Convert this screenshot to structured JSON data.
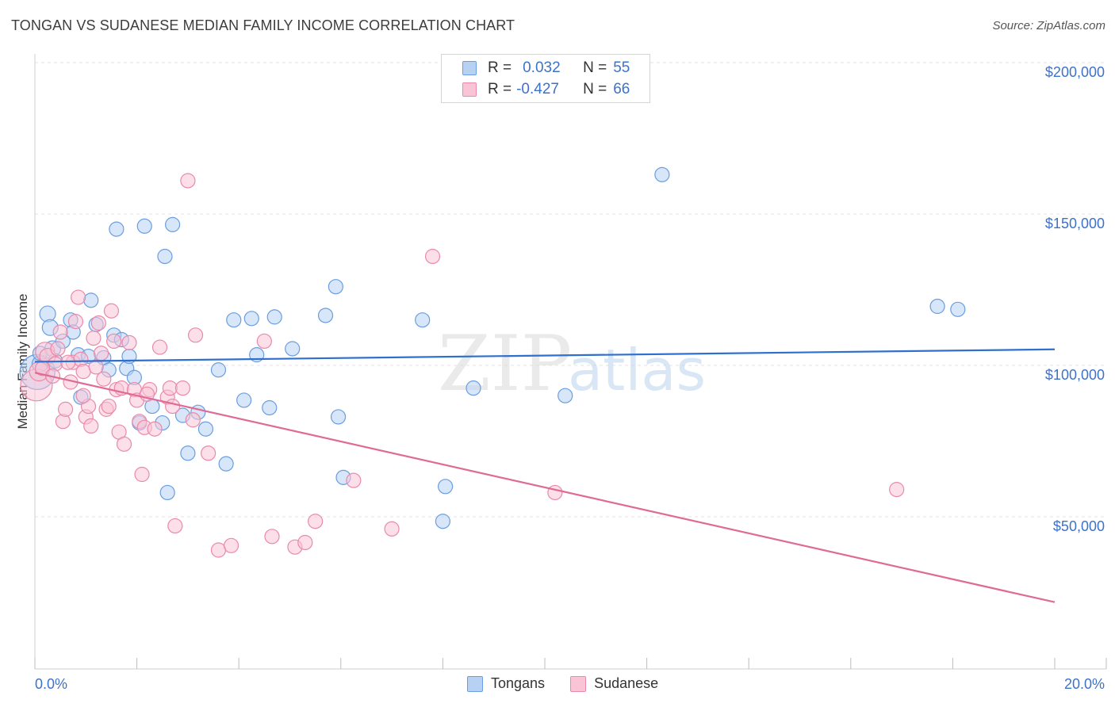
{
  "header": {
    "title": "TONGAN VS SUDANESE MEDIAN FAMILY INCOME CORRELATION CHART",
    "source": "Source: ZipAtlas.com"
  },
  "legend": {
    "r_label": "R =",
    "n_label": "N =",
    "tongans": {
      "r": "0.032",
      "n": "55"
    },
    "sudanese": {
      "r": "-0.427",
      "n": "66"
    }
  },
  "watermark": {
    "zip": "ZIP",
    "atlas": "atlas"
  },
  "colors": {
    "tongans_fill": "#b7d1f3",
    "tongans_stroke": "#6a9ee0",
    "tongans_line": "#2f6fcf",
    "sudanese_fill": "#f9c5d6",
    "sudanese_stroke": "#e98aaa",
    "sudanese_line": "#e06a96",
    "tick_label": "#3d72c9"
  },
  "chart_data": {
    "type": "scatter",
    "title": "TONGAN VS SUDANESE MEDIAN FAMILY INCOME CORRELATION CHART",
    "xlabel": "",
    "ylabel": "Median Family Income",
    "xlim": [
      0,
      20
    ],
    "ylim": [
      0,
      200000
    ],
    "x_tick_labels": [
      "0.0%",
      "20.0%"
    ],
    "y_ticks": [
      50000,
      100000,
      150000,
      200000
    ],
    "y_tick_labels": [
      "$50,000",
      "$100,000",
      "$150,000",
      "$200,000"
    ],
    "grid": true,
    "series": [
      {
        "name": "Tongans",
        "r": 0.032,
        "n": 55,
        "trend": {
          "x": [
            0,
            20
          ],
          "y": [
            101200,
            105300
          ]
        },
        "points": [
          [
            0.05,
            97800,
            22
          ],
          [
            0.1,
            100500,
            10
          ],
          [
            0.1,
            104000,
            9
          ],
          [
            0.25,
            117000,
            10
          ],
          [
            0.3,
            112500,
            10
          ],
          [
            0.35,
            105500,
            10
          ],
          [
            0.4,
            101500,
            9
          ],
          [
            0.55,
            108000,
            9
          ],
          [
            0.7,
            115000,
            9
          ],
          [
            0.75,
            111000,
            9
          ],
          [
            0.85,
            103500,
            9
          ],
          [
            0.9,
            89500,
            9
          ],
          [
            1.05,
            103000,
            9
          ],
          [
            1.1,
            121500,
            9
          ],
          [
            1.2,
            113500,
            9
          ],
          [
            1.35,
            102500,
            9
          ],
          [
            1.45,
            98500,
            9
          ],
          [
            1.55,
            110000,
            9
          ],
          [
            1.6,
            145000,
            9
          ],
          [
            1.7,
            108500,
            9
          ],
          [
            1.8,
            99000,
            9
          ],
          [
            1.85,
            103000,
            9
          ],
          [
            1.95,
            96000,
            9
          ],
          [
            2.05,
            81000,
            9
          ],
          [
            2.15,
            146000,
            9
          ],
          [
            2.3,
            86500,
            9
          ],
          [
            2.5,
            81000,
            9
          ],
          [
            2.55,
            136000,
            9
          ],
          [
            2.6,
            58000,
            9
          ],
          [
            2.7,
            146500,
            9
          ],
          [
            2.9,
            83500,
            9
          ],
          [
            3.0,
            71000,
            9
          ],
          [
            3.2,
            84500,
            9
          ],
          [
            3.35,
            79000,
            9
          ],
          [
            3.6,
            98500,
            9
          ],
          [
            3.75,
            67500,
            9
          ],
          [
            3.9,
            115000,
            9
          ],
          [
            4.1,
            88500,
            9
          ],
          [
            4.25,
            115500,
            9
          ],
          [
            4.35,
            103500,
            9
          ],
          [
            4.6,
            86000,
            9
          ],
          [
            4.7,
            116000,
            9
          ],
          [
            5.05,
            105500,
            9
          ],
          [
            5.7,
            116500,
            9
          ],
          [
            5.9,
            126000,
            9
          ],
          [
            5.95,
            83000,
            9
          ],
          [
            6.05,
            63000,
            9
          ],
          [
            7.6,
            115000,
            9
          ],
          [
            8.0,
            48500,
            9
          ],
          [
            8.05,
            60000,
            9
          ],
          [
            8.6,
            92500,
            9
          ],
          [
            10.4,
            90000,
            9
          ],
          [
            12.3,
            163000,
            9
          ],
          [
            17.7,
            119500,
            9
          ],
          [
            18.1,
            118500,
            9
          ]
        ]
      },
      {
        "name": "Sudanese",
        "r": -0.427,
        "n": 66,
        "trend": {
          "x": [
            0,
            20
          ],
          "y": [
            97600,
            21800
          ]
        },
        "points": [
          [
            0.03,
            93500,
            20
          ],
          [
            0.08,
            98000,
            12
          ],
          [
            0.2,
            104500,
            12
          ],
          [
            0.25,
            103000,
            10
          ],
          [
            0.4,
            100500,
            9
          ],
          [
            0.45,
            105500,
            9
          ],
          [
            0.5,
            111000,
            9
          ],
          [
            0.55,
            81500,
            9
          ],
          [
            0.6,
            85500,
            9
          ],
          [
            0.7,
            94500,
            9
          ],
          [
            0.75,
            101000,
            9
          ],
          [
            0.8,
            114500,
            9
          ],
          [
            0.85,
            122500,
            9
          ],
          [
            0.9,
            102000,
            9
          ],
          [
            0.95,
            98000,
            9
          ],
          [
            1.0,
            83000,
            9
          ],
          [
            1.05,
            86500,
            9
          ],
          [
            1.1,
            80000,
            9
          ],
          [
            1.15,
            109000,
            9
          ],
          [
            1.25,
            114000,
            9
          ],
          [
            1.3,
            104000,
            9
          ],
          [
            1.35,
            95500,
            9
          ],
          [
            1.4,
            85500,
            9
          ],
          [
            1.45,
            86500,
            9
          ],
          [
            1.5,
            118000,
            9
          ],
          [
            1.55,
            108000,
            9
          ],
          [
            1.6,
            92000,
            9
          ],
          [
            1.65,
            78000,
            9
          ],
          [
            1.7,
            92500,
            9
          ],
          [
            1.75,
            74000,
            9
          ],
          [
            1.85,
            107500,
            9
          ],
          [
            1.95,
            92000,
            9
          ],
          [
            2.0,
            88500,
            9
          ],
          [
            2.05,
            81500,
            9
          ],
          [
            2.1,
            64000,
            9
          ],
          [
            2.15,
            79500,
            9
          ],
          [
            2.25,
            92000,
            9
          ],
          [
            2.35,
            79000,
            9
          ],
          [
            2.45,
            106000,
            9
          ],
          [
            2.6,
            89500,
            9
          ],
          [
            2.65,
            92500,
            9
          ],
          [
            2.7,
            86500,
            9
          ],
          [
            2.75,
            47000,
            9
          ],
          [
            2.9,
            92500,
            9
          ],
          [
            3.0,
            161000,
            9
          ],
          [
            3.1,
            82000,
            9
          ],
          [
            3.15,
            110000,
            9
          ],
          [
            3.4,
            71000,
            9
          ],
          [
            3.6,
            39000,
            9
          ],
          [
            3.85,
            40500,
            9
          ],
          [
            4.5,
            108000,
            9
          ],
          [
            4.65,
            43500,
            9
          ],
          [
            5.1,
            40000,
            9
          ],
          [
            5.3,
            41500,
            9
          ],
          [
            5.5,
            48500,
            9
          ],
          [
            6.25,
            62000,
            9
          ],
          [
            7.0,
            46000,
            9
          ],
          [
            7.8,
            136000,
            9
          ],
          [
            10.2,
            58000,
            9
          ],
          [
            16.9,
            59000,
            9
          ],
          [
            0.15,
            99000,
            9
          ],
          [
            0.35,
            96500,
            9
          ],
          [
            0.65,
            101000,
            9
          ],
          [
            1.2,
            99500,
            9
          ],
          [
            2.2,
            90500,
            9
          ],
          [
            0.95,
            90000,
            9
          ]
        ]
      }
    ],
    "legend_position": "top-center"
  }
}
